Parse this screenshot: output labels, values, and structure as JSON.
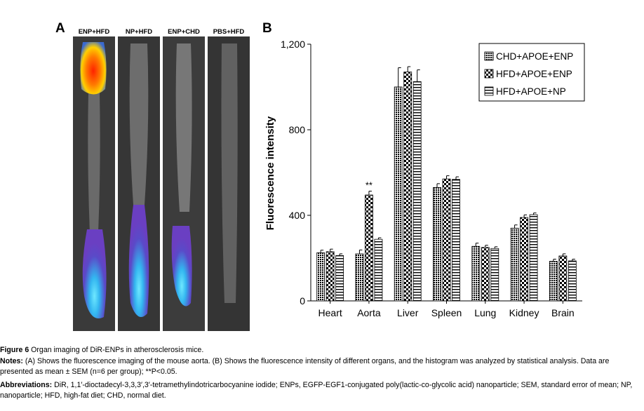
{
  "panel_a": {
    "letter": "A",
    "strips": [
      {
        "label": "ENP+HFD"
      },
      {
        "label": "NP+HFD"
      },
      {
        "label": "ENP+CHD"
      },
      {
        "label": "PBS+HFD"
      }
    ]
  },
  "panel_b": {
    "letter": "B"
  },
  "chart_data": {
    "type": "bar",
    "categories": [
      "Heart",
      "Aorta",
      "Liver",
      "Spleen",
      "Lung",
      "Kidney",
      "Brain"
    ],
    "series": [
      {
        "name": "CHD+APOE+ENP",
        "pattern": "dots",
        "values": [
          225,
          220,
          1000,
          530,
          255,
          340,
          185
        ],
        "errors": [
          12,
          18,
          90,
          18,
          15,
          15,
          10
        ]
      },
      {
        "name": "HFD+APOE+ENP",
        "pattern": "checker",
        "values": [
          230,
          495,
          1070,
          570,
          250,
          390,
          210
        ],
        "errors": [
          12,
          18,
          25,
          15,
          10,
          12,
          10
        ]
      },
      {
        "name": "HFD+APOE+NP",
        "pattern": "hlines",
        "values": [
          212,
          288,
          1025,
          568,
          245,
          403,
          187
        ],
        "errors": [
          8,
          7,
          55,
          12,
          8,
          8,
          8
        ]
      }
    ],
    "ylabel": "Fluorescence intensity",
    "ylim": [
      0,
      1200
    ],
    "yticks": [
      "0",
      "400",
      "800",
      "1,200"
    ],
    "ytick_values": [
      0,
      400,
      800,
      1200
    ],
    "annotation": {
      "text": "**",
      "category": "Aorta",
      "series": 1
    },
    "legend_position": "top-right",
    "grid": false
  },
  "caption": {
    "title_bold": "Figure 6",
    "title_text": " Organ imaging of DiR-ENPs in atherosclerosis mice.",
    "notes_bold": "Notes:",
    "notes_text": " (A) Shows the fluorescence imaging of the mouse aorta. (B) Shows the fluorescence intensity of different organs, and the histogram was analyzed by statistical analysis. Data are presented as mean ± SEM (n=6 per group); **P<0.05.",
    "abbr_bold": "Abbreviations:",
    "abbr_text": " DiR, 1,1′-dioctadecyl-3,3,3′,3′-tetramethylindotricarbocyanine iodide; ENPs, EGFP-EGF1-conjugated poly(lactic-co-glycolic acid) nanoparticle; SEM, standard error of mean; NP, nanoparticle; HFD, high-fat diet; CHD, normal diet."
  },
  "colors": {
    "strip_bg": "#3a3a3a",
    "vessel": "#b9b9b9",
    "heat_red": "#ff3300",
    "heat_yellow": "#ffd000",
    "signal_purple": "#6a3fc2",
    "signal_cyan": "#33c8f0"
  }
}
